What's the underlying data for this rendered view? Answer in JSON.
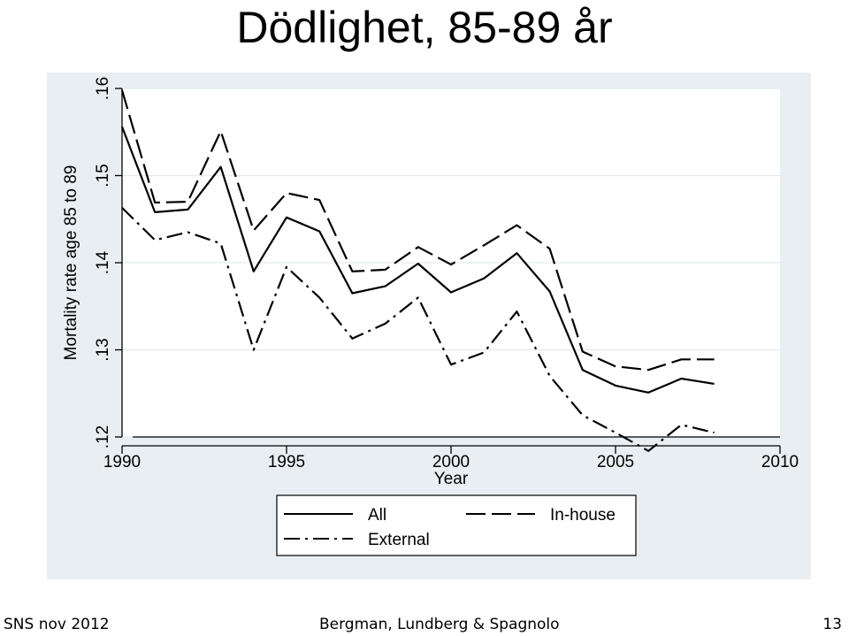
{
  "title": "Dödlighet, 85-89 år",
  "footer": {
    "left": "SNS nov 2012",
    "center": "Bergman, Lundberg & Spagnolo",
    "page": "13"
  },
  "chart_data": {
    "type": "line",
    "title": "",
    "xlabel": "Year",
    "ylabel": "Mortality rate age 85 to 89",
    "xlim": [
      1990,
      2010
    ],
    "ylim": [
      0.12,
      0.16
    ],
    "x_ticks": [
      1990,
      1995,
      2000,
      2005,
      2010
    ],
    "x_tick_labels": [
      "1990",
      "1995",
      "2000",
      "2005",
      "2010"
    ],
    "y_ticks": [
      0.12,
      0.13,
      0.14,
      0.15,
      0.16
    ],
    "y_tick_labels": [
      ".12",
      ".13",
      ".14",
      ".15",
      ".16"
    ],
    "grid": "horizontal",
    "legend_position": "bottom",
    "x": [
      1990,
      1991,
      1992,
      1993,
      1994,
      1995,
      1996,
      1997,
      1998,
      1999,
      2000,
      2001,
      2002,
      2003,
      2004,
      2005,
      2006,
      2007,
      2008
    ],
    "series": [
      {
        "name": "All",
        "style": "solid",
        "values": [
          0.1556,
          0.1458,
          0.1461,
          0.151,
          0.139,
          0.1452,
          0.1436,
          0.1365,
          0.1373,
          0.1399,
          0.1366,
          0.1382,
          0.1411,
          0.1367,
          0.1277,
          0.1259,
          0.1251,
          0.1267,
          0.1261
        ]
      },
      {
        "name": "In-house",
        "style": "longdash",
        "values": [
          0.1598,
          0.1469,
          0.147,
          0.1551,
          0.1437,
          0.148,
          0.1472,
          0.139,
          0.1392,
          0.1418,
          0.1398,
          0.142,
          0.1443,
          0.1416,
          0.1298,
          0.1281,
          0.1277,
          0.1289,
          0.1289
        ]
      },
      {
        "name": "External",
        "style": "dashdot",
        "values": [
          0.1463,
          0.1426,
          0.1435,
          0.1422,
          0.13,
          0.1395,
          0.136,
          0.1313,
          0.133,
          0.136,
          0.1283,
          0.1297,
          0.1344,
          0.127,
          0.1225,
          0.1205,
          0.1184,
          0.1214,
          0.1205
        ]
      }
    ]
  }
}
